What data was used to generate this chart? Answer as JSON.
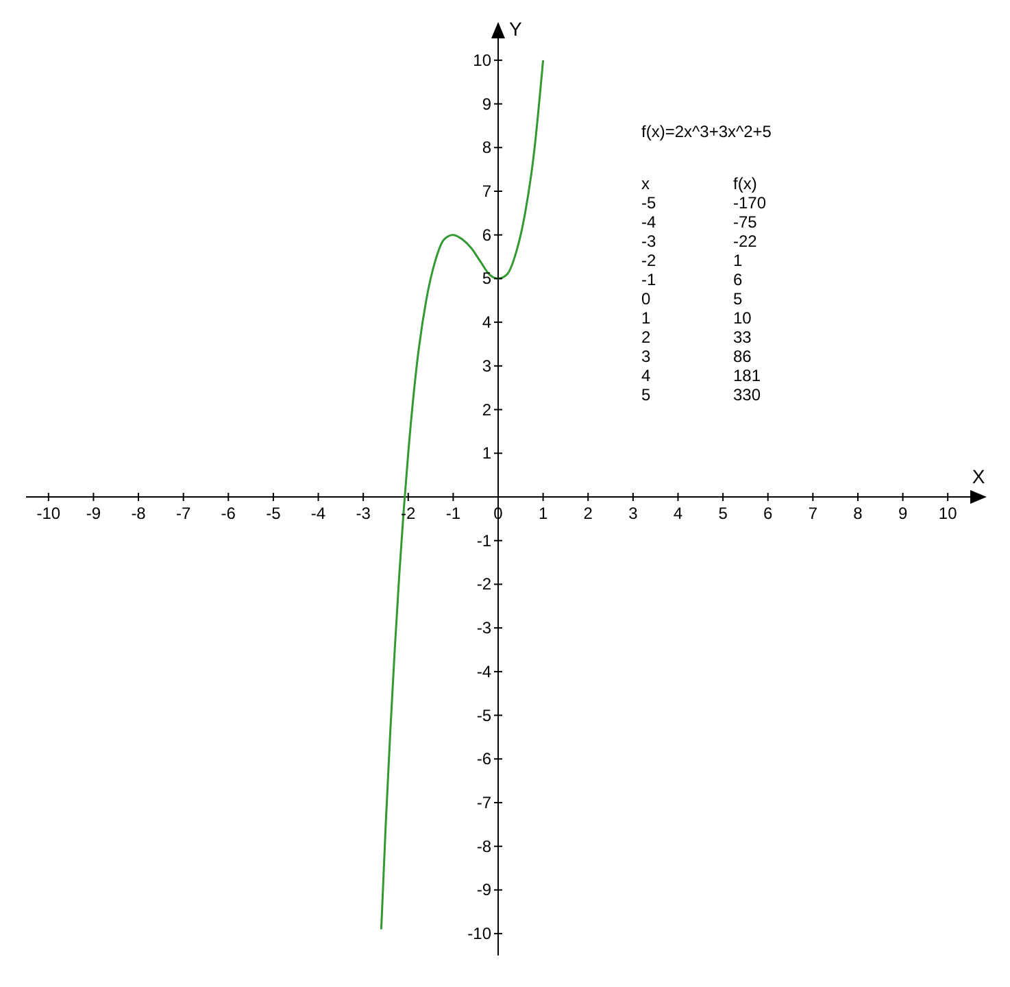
{
  "chart_data": {
    "type": "line",
    "xlabel": "X",
    "ylabel": "Y",
    "x": [
      -2.6,
      -2.5,
      -2.4,
      -2.3,
      -2.2,
      -2.1,
      -2,
      -1.8,
      -1.6,
      -1.4,
      -1.2,
      -1,
      -0.8,
      -0.6,
      -0.4,
      -0.2,
      0,
      0.2,
      0.4,
      0.6,
      0.8,
      1
    ],
    "values": [
      -9.9,
      -7.5,
      -5.4,
      -3.5,
      -1.8,
      -0.3,
      1,
      3.1,
      4.5,
      5.4,
      5.9,
      6,
      5.9,
      5.7,
      5.4,
      5.1,
      5,
      5.1,
      5.6,
      6.5,
      7.9,
      10
    ],
    "color": "#339933",
    "xlim": [
      -10.5,
      10.5
    ],
    "ylim": [
      -10.5,
      10.5
    ],
    "xticks": [
      -10,
      -9,
      -8,
      -7,
      -6,
      -5,
      -4,
      -3,
      -2,
      -1,
      0,
      1,
      2,
      3,
      4,
      5,
      6,
      7,
      8,
      9,
      10
    ],
    "yticks": [
      -10,
      -9,
      -8,
      -7,
      -6,
      -5,
      -4,
      -3,
      -2,
      -1,
      {
        "value": 0,
        "label": null
      },
      1,
      2,
      3,
      4,
      5,
      6,
      7,
      8,
      9,
      10
    ],
    "annotations": [
      "f(x)=2x^3+3x^2+5",
      "x",
      "f(x)",
      "-5",
      "-170",
      "-4",
      "-75",
      "-3",
      "-22",
      "-2",
      "1",
      "-1",
      "6",
      "0",
      "5",
      "1",
      "10",
      "2",
      "33",
      "3",
      "86",
      "4",
      "181",
      "5",
      "330"
    ]
  }
}
